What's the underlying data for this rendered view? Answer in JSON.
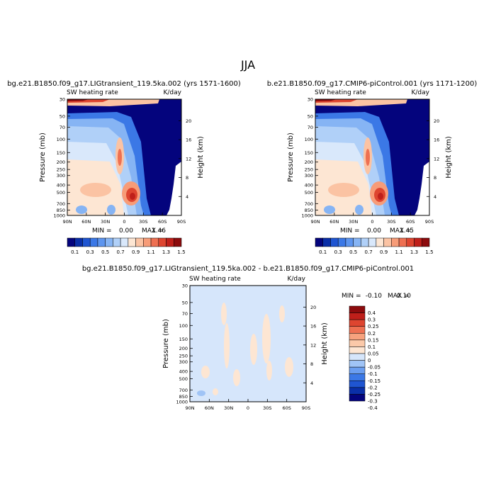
{
  "page_title": "JJA",
  "contour_palettes": {
    "field": [
      "#04047d",
      "#0a2fa8",
      "#1f55d1",
      "#3b78e6",
      "#5d95ef",
      "#86b4f4",
      "#b0d0f8",
      "#d9e8fb",
      "#fde6d3",
      "#fbc3a3",
      "#f79c78",
      "#ee7052",
      "#de4530",
      "#bf1f1a",
      "#8c0b0d"
    ],
    "diff": [
      "#04047d",
      "#0a2fa8",
      "#1f55d1",
      "#3b78e6",
      "#6b9ef0",
      "#a0c4f6",
      "#d6e6fb",
      "#fde6d3",
      "#fbc9a9",
      "#f7a27e",
      "#ee7052",
      "#de4530",
      "#bf1f1a",
      "#8c0b0d"
    ]
  },
  "chart_data": [
    {
      "type": "heatmap",
      "title": "bg.e21.B1850.f09_g17.LIGtransient_119.5ka.002 (yrs 1571-1600)",
      "subtitle_left": "SW heating rate",
      "units": "K/day",
      "xlabel": "",
      "ylabel": "Pressure (mb)",
      "ylabel_right": "Height (km)",
      "x_tick_labels": [
        "90N",
        "60N",
        "30N",
        "0",
        "30S",
        "60S",
        "90S"
      ],
      "x_ticks": [
        90,
        60,
        30,
        0,
        -30,
        -60,
        -90
      ],
      "y_tick_labels": [
        "1000",
        "850",
        "700",
        "500",
        "400",
        "300",
        "250",
        "200",
        "150",
        "100",
        "70",
        "50",
        "30"
      ],
      "y_ticks": [
        1000,
        850,
        700,
        500,
        400,
        300,
        250,
        200,
        150,
        100,
        70,
        50,
        30
      ],
      "y_scale": "log",
      "ylim": [
        1000,
        30
      ],
      "right_tick_labels": [
        "4",
        "8",
        "12",
        "16",
        "20"
      ],
      "right_ticks_km": [
        4,
        8,
        12,
        16,
        20
      ],
      "min_label": "MIN =",
      "min_value": "0.00",
      "max_label": "MAX =",
      "max_value": "1.46",
      "colorbar_labels": [
        "0.1",
        "0.3",
        "0.5",
        "0.7",
        "0.9",
        "1.1",
        "1.3",
        "1.5"
      ],
      "colorbar_levels": [
        0.1,
        0.2,
        0.3,
        0.4,
        0.5,
        0.6,
        0.7,
        0.8,
        0.9,
        1.0,
        1.1,
        1.2,
        1.3,
        1.4
      ]
    },
    {
      "type": "heatmap",
      "title": "b.e21.B1850.f09_g17.CMIP6-piControl.001 (yrs 1171-1200)",
      "subtitle_left": "SW heating rate",
      "units": "K/day",
      "xlabel": "",
      "ylabel": "Pressure (mb)",
      "ylabel_right": "Height (km)",
      "x_tick_labels": [
        "90N",
        "60N",
        "30N",
        "0",
        "30S",
        "60S",
        "90S"
      ],
      "x_ticks": [
        90,
        60,
        30,
        0,
        -30,
        -60,
        -90
      ],
      "y_tick_labels": [
        "1000",
        "850",
        "700",
        "500",
        "400",
        "300",
        "250",
        "200",
        "150",
        "100",
        "70",
        "50",
        "30"
      ],
      "y_ticks": [
        1000,
        850,
        700,
        500,
        400,
        300,
        250,
        200,
        150,
        100,
        70,
        50,
        30
      ],
      "y_scale": "log",
      "ylim": [
        1000,
        30
      ],
      "right_tick_labels": [
        "4",
        "8",
        "12",
        "16",
        "20"
      ],
      "right_ticks_km": [
        4,
        8,
        12,
        16,
        20
      ],
      "min_label": "MIN =",
      "min_value": "0.00",
      "max_label": "MAX =",
      "max_value": "1.45",
      "colorbar_labels": [
        "0.1",
        "0.3",
        "0.5",
        "0.7",
        "0.9",
        "1.1",
        "1.3",
        "1.5"
      ],
      "colorbar_levels": [
        0.1,
        0.2,
        0.3,
        0.4,
        0.5,
        0.6,
        0.7,
        0.8,
        0.9,
        1.0,
        1.1,
        1.2,
        1.3,
        1.4
      ]
    },
    {
      "type": "heatmap",
      "title": "bg.e21.B1850.f09_g17.LIGtransient_119.5ka.002 - b.e21.B1850.f09_g17.CMIP6-piControl.001",
      "subtitle_left": "SW heating rate",
      "units": "K/day",
      "xlabel": "",
      "ylabel": "Pressure (mb)",
      "ylabel_right": "Height (km)",
      "x_tick_labels": [
        "90N",
        "60N",
        "30N",
        "0",
        "30S",
        "60S",
        "90S"
      ],
      "x_ticks": [
        90,
        60,
        30,
        0,
        -30,
        -60,
        -90
      ],
      "y_tick_labels": [
        "1000",
        "850",
        "700",
        "500",
        "400",
        "300",
        "250",
        "200",
        "150",
        "100",
        "70",
        "50",
        "30"
      ],
      "y_ticks": [
        1000,
        850,
        700,
        500,
        400,
        300,
        250,
        200,
        150,
        100,
        70,
        50,
        30
      ],
      "y_scale": "log",
      "ylim": [
        1000,
        30
      ],
      "right_tick_labels": [
        "4",
        "8",
        "12",
        "16",
        "20"
      ],
      "right_ticks_km": [
        4,
        8,
        12,
        16,
        20
      ],
      "min_label": "MIN =",
      "min_value": "-0.10",
      "max_label": "MAX =",
      "max_value": "0.10",
      "colorbar_labels": [
        "0.4",
        "0.3",
        "0.25",
        "0.2",
        "0.15",
        "0.1",
        "0.05",
        "0",
        "-0.05",
        "-0.1",
        "-0.15",
        "-0.2",
        "-0.25",
        "-0.3",
        "-0.4"
      ],
      "colorbar_levels": [
        -0.4,
        -0.3,
        -0.25,
        -0.2,
        -0.15,
        -0.1,
        -0.05,
        0,
        0.05,
        0.1,
        0.15,
        0.2,
        0.25,
        0.3,
        0.4
      ]
    }
  ]
}
